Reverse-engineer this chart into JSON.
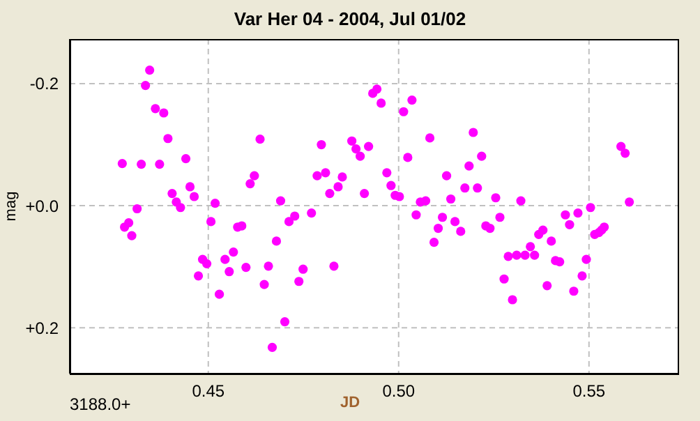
{
  "chart_data": {
    "type": "scatter",
    "title": "Var Her 04 - 2004, Jul 01/02",
    "xlabel": "JD",
    "ylabel": "mag",
    "annotations": [
      "3188.0+"
    ],
    "xlim": [
      0.4136,
      0.5733
    ],
    "xticks": [
      {
        "value": 0.45,
        "label": "0.45"
      },
      {
        "value": 0.5,
        "label": "0.50"
      },
      {
        "value": 0.55,
        "label": "0.55"
      }
    ],
    "ylim": [
      0.275,
      -0.273
    ],
    "yticks": [
      {
        "value": -0.2,
        "label": "-0.2"
      },
      {
        "value": 0,
        "label": "+0.0"
      },
      {
        "value": 0.2,
        "label": "+0.2"
      }
    ],
    "grid": true,
    "legend": false,
    "marker": "circle",
    "series": [
      {
        "color": "#ff00ff",
        "x": [
          0.4274,
          0.428,
          0.4291,
          0.4299,
          0.4313,
          0.4324,
          0.4335,
          0.4346,
          0.4361,
          0.4372,
          0.4383,
          0.4394,
          0.4405,
          0.4416,
          0.4427,
          0.4441,
          0.4452,
          0.4463,
          0.4474,
          0.4485,
          0.4496,
          0.4507,
          0.4518,
          0.4529,
          0.4544,
          0.4555,
          0.4566,
          0.4577,
          0.4588,
          0.4599,
          0.461,
          0.4621,
          0.4636,
          0.4647,
          0.4658,
          0.4668,
          0.4679,
          0.469,
          0.4701,
          0.4712,
          0.4727,
          0.4738,
          0.4749,
          0.4771,
          0.4786,
          0.4797,
          0.4808,
          0.4819,
          0.483,
          0.4841,
          0.4852,
          0.4877,
          0.4888,
          0.4899,
          0.491,
          0.4921,
          0.4932,
          0.4943,
          0.4954,
          0.4969,
          0.498,
          0.4991,
          0.5002,
          0.5013,
          0.5024,
          0.5035,
          0.5046,
          0.5057,
          0.5071,
          0.5082,
          0.5093,
          0.5104,
          0.5115,
          0.5126,
          0.5137,
          0.5148,
          0.5163,
          0.5174,
          0.5185,
          0.5196,
          0.5207,
          0.5218,
          0.5229,
          0.524,
          0.5255,
          0.5266,
          0.5277,
          0.5288,
          0.5299,
          0.531,
          0.5321,
          0.5332,
          0.5346,
          0.5357,
          0.5368,
          0.5379,
          0.539,
          0.5401,
          0.5412,
          0.5423,
          0.5438,
          0.5449,
          0.546,
          0.5471,
          0.5482,
          0.5493,
          0.5504,
          0.5515,
          0.5526,
          0.5533,
          0.554,
          0.5584,
          0.5595,
          0.5606
        ],
        "values": [
          -0.069,
          0.035,
          0.028,
          0.049,
          0.005,
          -0.068,
          -0.197,
          -0.222,
          -0.159,
          -0.068,
          -0.152,
          -0.11,
          -0.02,
          -0.006,
          0.003,
          -0.077,
          -0.031,
          -0.015,
          0.115,
          0.088,
          0.095,
          0.026,
          -0.004,
          0.145,
          0.088,
          0.108,
          0.076,
          0.035,
          0.033,
          0.101,
          -0.036,
          -0.049,
          -0.109,
          0.129,
          0.099,
          0.232,
          0.058,
          -0.008,
          0.19,
          0.026,
          0.017,
          0.124,
          0.104,
          0.012,
          -0.049,
          -0.1,
          -0.054,
          -0.02,
          0.099,
          -0.031,
          -0.047,
          -0.106,
          -0.093,
          -0.081,
          -0.02,
          -0.097,
          -0.184,
          -0.191,
          -0.168,
          -0.054,
          -0.033,
          -0.017,
          -0.015,
          -0.154,
          -0.079,
          -0.173,
          0.015,
          -0.006,
          -0.008,
          -0.111,
          0.06,
          0.037,
          0.019,
          -0.049,
          -0.011,
          0.026,
          0.042,
          -0.029,
          -0.065,
          -0.12,
          -0.029,
          -0.081,
          0.033,
          0.037,
          -0.013,
          0.019,
          0.12,
          0.083,
          0.154,
          0.081,
          -0.008,
          0.081,
          0.067,
          0.081,
          0.047,
          0.04,
          0.131,
          0.058,
          0.09,
          0.092,
          0.015,
          0.031,
          0.14,
          0.012,
          0.115,
          0.088,
          0.003,
          0.047,
          0.044,
          0.04,
          0.035,
          -0.097,
          -0.086,
          -0.006
        ]
      }
    ]
  }
}
